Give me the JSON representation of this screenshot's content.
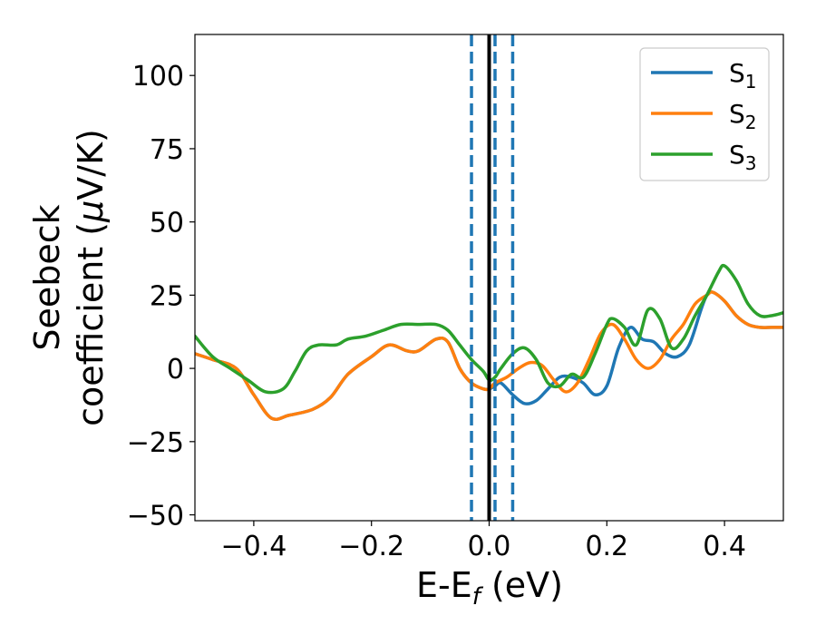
{
  "chart_data": {
    "type": "line",
    "xlabel": "E-E",
    "xlabel_sub": "f",
    "xlabel_unit": " (eV)",
    "ylabel_line1": "Seebeck",
    "ylabel_line2_prefix": "coefficient  (",
    "ylabel_mu": "μ",
    "ylabel_line2_suffix": "V/K)",
    "xlim": [
      -0.5,
      0.5
    ],
    "ylim": [
      -52,
      114
    ],
    "xticks": [
      -0.4,
      -0.2,
      0.0,
      0.2,
      0.4
    ],
    "xtick_labels": [
      "−0.4",
      "−0.2",
      "0.0",
      "0.2",
      "0.4"
    ],
    "yticks": [
      -50,
      -25,
      0,
      25,
      50,
      75,
      100
    ],
    "ytick_labels": [
      "−50",
      "−25",
      "0",
      "25",
      "50",
      "75",
      "100"
    ],
    "grid": false,
    "legend_position": "top-right",
    "vlines": [
      {
        "x": 0.0,
        "color": "#000000",
        "style": "solid"
      },
      {
        "x": -0.03,
        "color": "#1f77b4",
        "style": "dashed"
      },
      {
        "x": 0.01,
        "color": "#1f77b4",
        "style": "dashed"
      },
      {
        "x": 0.04,
        "color": "#1f77b4",
        "style": "dashed"
      }
    ],
    "series": [
      {
        "name_main": "S",
        "name_sub": "1",
        "color": "#1f77b4",
        "points": [
          [
            -0.5,
            5
          ],
          [
            -0.47,
            3
          ],
          [
            -0.43,
            0
          ],
          [
            -0.4,
            -9
          ],
          [
            -0.37,
            -17
          ],
          [
            -0.34,
            -16
          ],
          [
            -0.3,
            -14
          ],
          [
            -0.27,
            -10
          ],
          [
            -0.24,
            -2
          ],
          [
            -0.2,
            4
          ],
          [
            -0.17,
            8
          ],
          [
            -0.14,
            6
          ],
          [
            -0.12,
            6
          ],
          [
            -0.09,
            10
          ],
          [
            -0.07,
            9
          ],
          [
            -0.05,
            0
          ],
          [
            -0.03,
            -5
          ],
          [
            -0.01,
            -7
          ],
          [
            0.0,
            -7
          ],
          [
            0.01,
            -6
          ],
          [
            0.02,
            -5
          ],
          [
            0.04,
            -9
          ],
          [
            0.06,
            -12
          ],
          [
            0.08,
            -11
          ],
          [
            0.1,
            -7
          ],
          [
            0.12,
            -3
          ],
          [
            0.14,
            -3
          ],
          [
            0.16,
            -5
          ],
          [
            0.18,
            -9
          ],
          [
            0.2,
            -6
          ],
          [
            0.22,
            7
          ],
          [
            0.24,
            14
          ],
          [
            0.26,
            10
          ],
          [
            0.28,
            9
          ],
          [
            0.3,
            5
          ],
          [
            0.32,
            4
          ],
          [
            0.34,
            8
          ],
          [
            0.36,
            20
          ],
          [
            0.37,
            25
          ],
          [
            0.38,
            26
          ],
          [
            0.4,
            23
          ],
          [
            0.42,
            18
          ],
          [
            0.44,
            15
          ],
          [
            0.46,
            14
          ],
          [
            0.48,
            14
          ],
          [
            0.5,
            14
          ]
        ]
      },
      {
        "name_main": "S",
        "name_sub": "2",
        "color": "#ff7f0e",
        "points": [
          [
            -0.5,
            5
          ],
          [
            -0.47,
            3
          ],
          [
            -0.43,
            0
          ],
          [
            -0.4,
            -9
          ],
          [
            -0.37,
            -17
          ],
          [
            -0.34,
            -16
          ],
          [
            -0.3,
            -14
          ],
          [
            -0.27,
            -10
          ],
          [
            -0.24,
            -2
          ],
          [
            -0.2,
            4
          ],
          [
            -0.17,
            8
          ],
          [
            -0.14,
            6
          ],
          [
            -0.12,
            6
          ],
          [
            -0.09,
            10
          ],
          [
            -0.07,
            9
          ],
          [
            -0.05,
            0
          ],
          [
            -0.03,
            -5
          ],
          [
            -0.01,
            -7
          ],
          [
            0.0,
            -7
          ],
          [
            0.01,
            -5
          ],
          [
            0.03,
            -3
          ],
          [
            0.05,
            0
          ],
          [
            0.07,
            2
          ],
          [
            0.09,
            1
          ],
          [
            0.11,
            -4
          ],
          [
            0.13,
            -8
          ],
          [
            0.15,
            -5
          ],
          [
            0.17,
            3
          ],
          [
            0.19,
            12
          ],
          [
            0.21,
            15
          ],
          [
            0.23,
            10
          ],
          [
            0.25,
            3
          ],
          [
            0.27,
            0
          ],
          [
            0.29,
            3
          ],
          [
            0.31,
            10
          ],
          [
            0.33,
            15
          ],
          [
            0.35,
            22
          ],
          [
            0.37,
            25
          ],
          [
            0.38,
            26
          ],
          [
            0.4,
            23
          ],
          [
            0.42,
            18
          ],
          [
            0.44,
            15
          ],
          [
            0.46,
            14
          ],
          [
            0.48,
            14
          ],
          [
            0.5,
            14
          ]
        ]
      },
      {
        "name_main": "S",
        "name_sub": "3",
        "color": "#2ca02c",
        "points": [
          [
            -0.5,
            11
          ],
          [
            -0.47,
            4
          ],
          [
            -0.44,
            0
          ],
          [
            -0.41,
            -4
          ],
          [
            -0.38,
            -8
          ],
          [
            -0.35,
            -7
          ],
          [
            -0.33,
            -1
          ],
          [
            -0.31,
            6
          ],
          [
            -0.29,
            8
          ],
          [
            -0.26,
            8
          ],
          [
            -0.24,
            10
          ],
          [
            -0.21,
            11
          ],
          [
            -0.18,
            13
          ],
          [
            -0.15,
            15
          ],
          [
            -0.12,
            15
          ],
          [
            -0.09,
            15
          ],
          [
            -0.07,
            13
          ],
          [
            -0.05,
            8
          ],
          [
            -0.03,
            3
          ],
          [
            -0.01,
            -1
          ],
          [
            0.0,
            -4
          ],
          [
            0.01,
            -3
          ],
          [
            0.02,
            0
          ],
          [
            0.04,
            5
          ],
          [
            0.06,
            7
          ],
          [
            0.08,
            3
          ],
          [
            0.1,
            -5
          ],
          [
            0.12,
            -6
          ],
          [
            0.14,
            -2
          ],
          [
            0.16,
            -3
          ],
          [
            0.18,
            5
          ],
          [
            0.2,
            15
          ],
          [
            0.21,
            17
          ],
          [
            0.23,
            14
          ],
          [
            0.25,
            8
          ],
          [
            0.27,
            20
          ],
          [
            0.29,
            17
          ],
          [
            0.31,
            7
          ],
          [
            0.33,
            10
          ],
          [
            0.35,
            18
          ],
          [
            0.37,
            25
          ],
          [
            0.39,
            33
          ],
          [
            0.4,
            35
          ],
          [
            0.42,
            30
          ],
          [
            0.44,
            22
          ],
          [
            0.46,
            18
          ],
          [
            0.48,
            18
          ],
          [
            0.5,
            19
          ]
        ]
      }
    ]
  }
}
